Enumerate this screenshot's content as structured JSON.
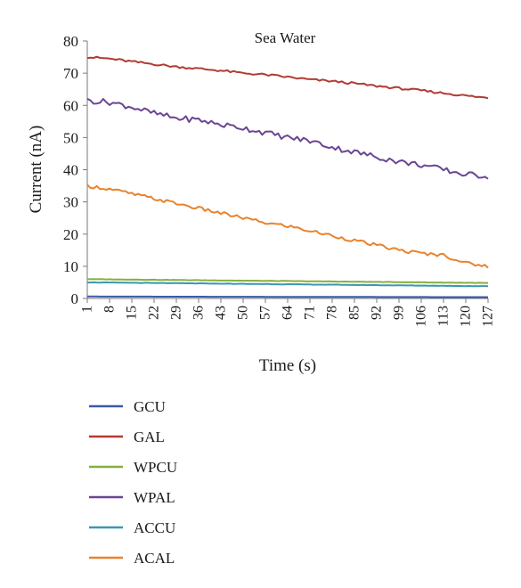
{
  "chart_data": {
    "type": "line",
    "title": "Sea Water",
    "xlabel": "Time (s)",
    "ylabel": "Current (nA)",
    "ylim": [
      0,
      80
    ],
    "yticks": [
      0,
      10,
      20,
      30,
      40,
      50,
      60,
      70,
      80
    ],
    "xlim": [
      1,
      127
    ],
    "xtick_labels": [
      1,
      8,
      15,
      22,
      29,
      36,
      43,
      50,
      57,
      64,
      71,
      78,
      85,
      92,
      99,
      106,
      113,
      120,
      127
    ],
    "grid": false,
    "legend_position": "bottom",
    "series": [
      {
        "name": "GCU",
        "color": "#3a5ba8",
        "x": [
          1,
          127
        ],
        "values": [
          0.6,
          0.4
        ]
      },
      {
        "name": "GAL",
        "color": "#b23b35",
        "x": [
          1,
          8,
          15,
          22,
          29,
          36,
          43,
          50,
          57,
          64,
          71,
          78,
          85,
          92,
          99,
          106,
          113,
          120,
          127
        ],
        "values": [
          75,
          74.5,
          73.6,
          72.8,
          72,
          71.4,
          70.8,
          70,
          69.5,
          68.8,
          68,
          67.5,
          66.8,
          66,
          65.3,
          64.6,
          63.8,
          63,
          62.3
        ]
      },
      {
        "name": "WPCU",
        "color": "#86b03f",
        "x": [
          1,
          127
        ],
        "values": [
          6.0,
          4.8
        ]
      },
      {
        "name": "WPAL",
        "color": "#6a4694",
        "x": [
          1,
          8,
          15,
          22,
          29,
          36,
          43,
          50,
          57,
          64,
          71,
          78,
          85,
          92,
          99,
          106,
          113,
          120,
          127
        ],
        "values": [
          61.5,
          61,
          59.5,
          57.5,
          56,
          55.5,
          54,
          53,
          51.5,
          50,
          49,
          47,
          45.5,
          44,
          42.5,
          41.5,
          40,
          38.5,
          38
        ]
      },
      {
        "name": "ACCU",
        "color": "#3b97b0",
        "x": [
          1,
          127
        ],
        "values": [
          5.0,
          3.8
        ]
      },
      {
        "name": "ACAL",
        "color": "#e8832f",
        "x": [
          1,
          8,
          15,
          22,
          29,
          36,
          43,
          50,
          57,
          64,
          71,
          78,
          85,
          92,
          99,
          106,
          113,
          120,
          127
        ],
        "values": [
          35,
          34,
          32.5,
          31,
          29.5,
          28,
          26.5,
          25,
          23.5,
          22.5,
          21,
          19.5,
          18,
          16.5,
          15,
          14,
          13.5,
          11,
          10
        ]
      }
    ]
  }
}
